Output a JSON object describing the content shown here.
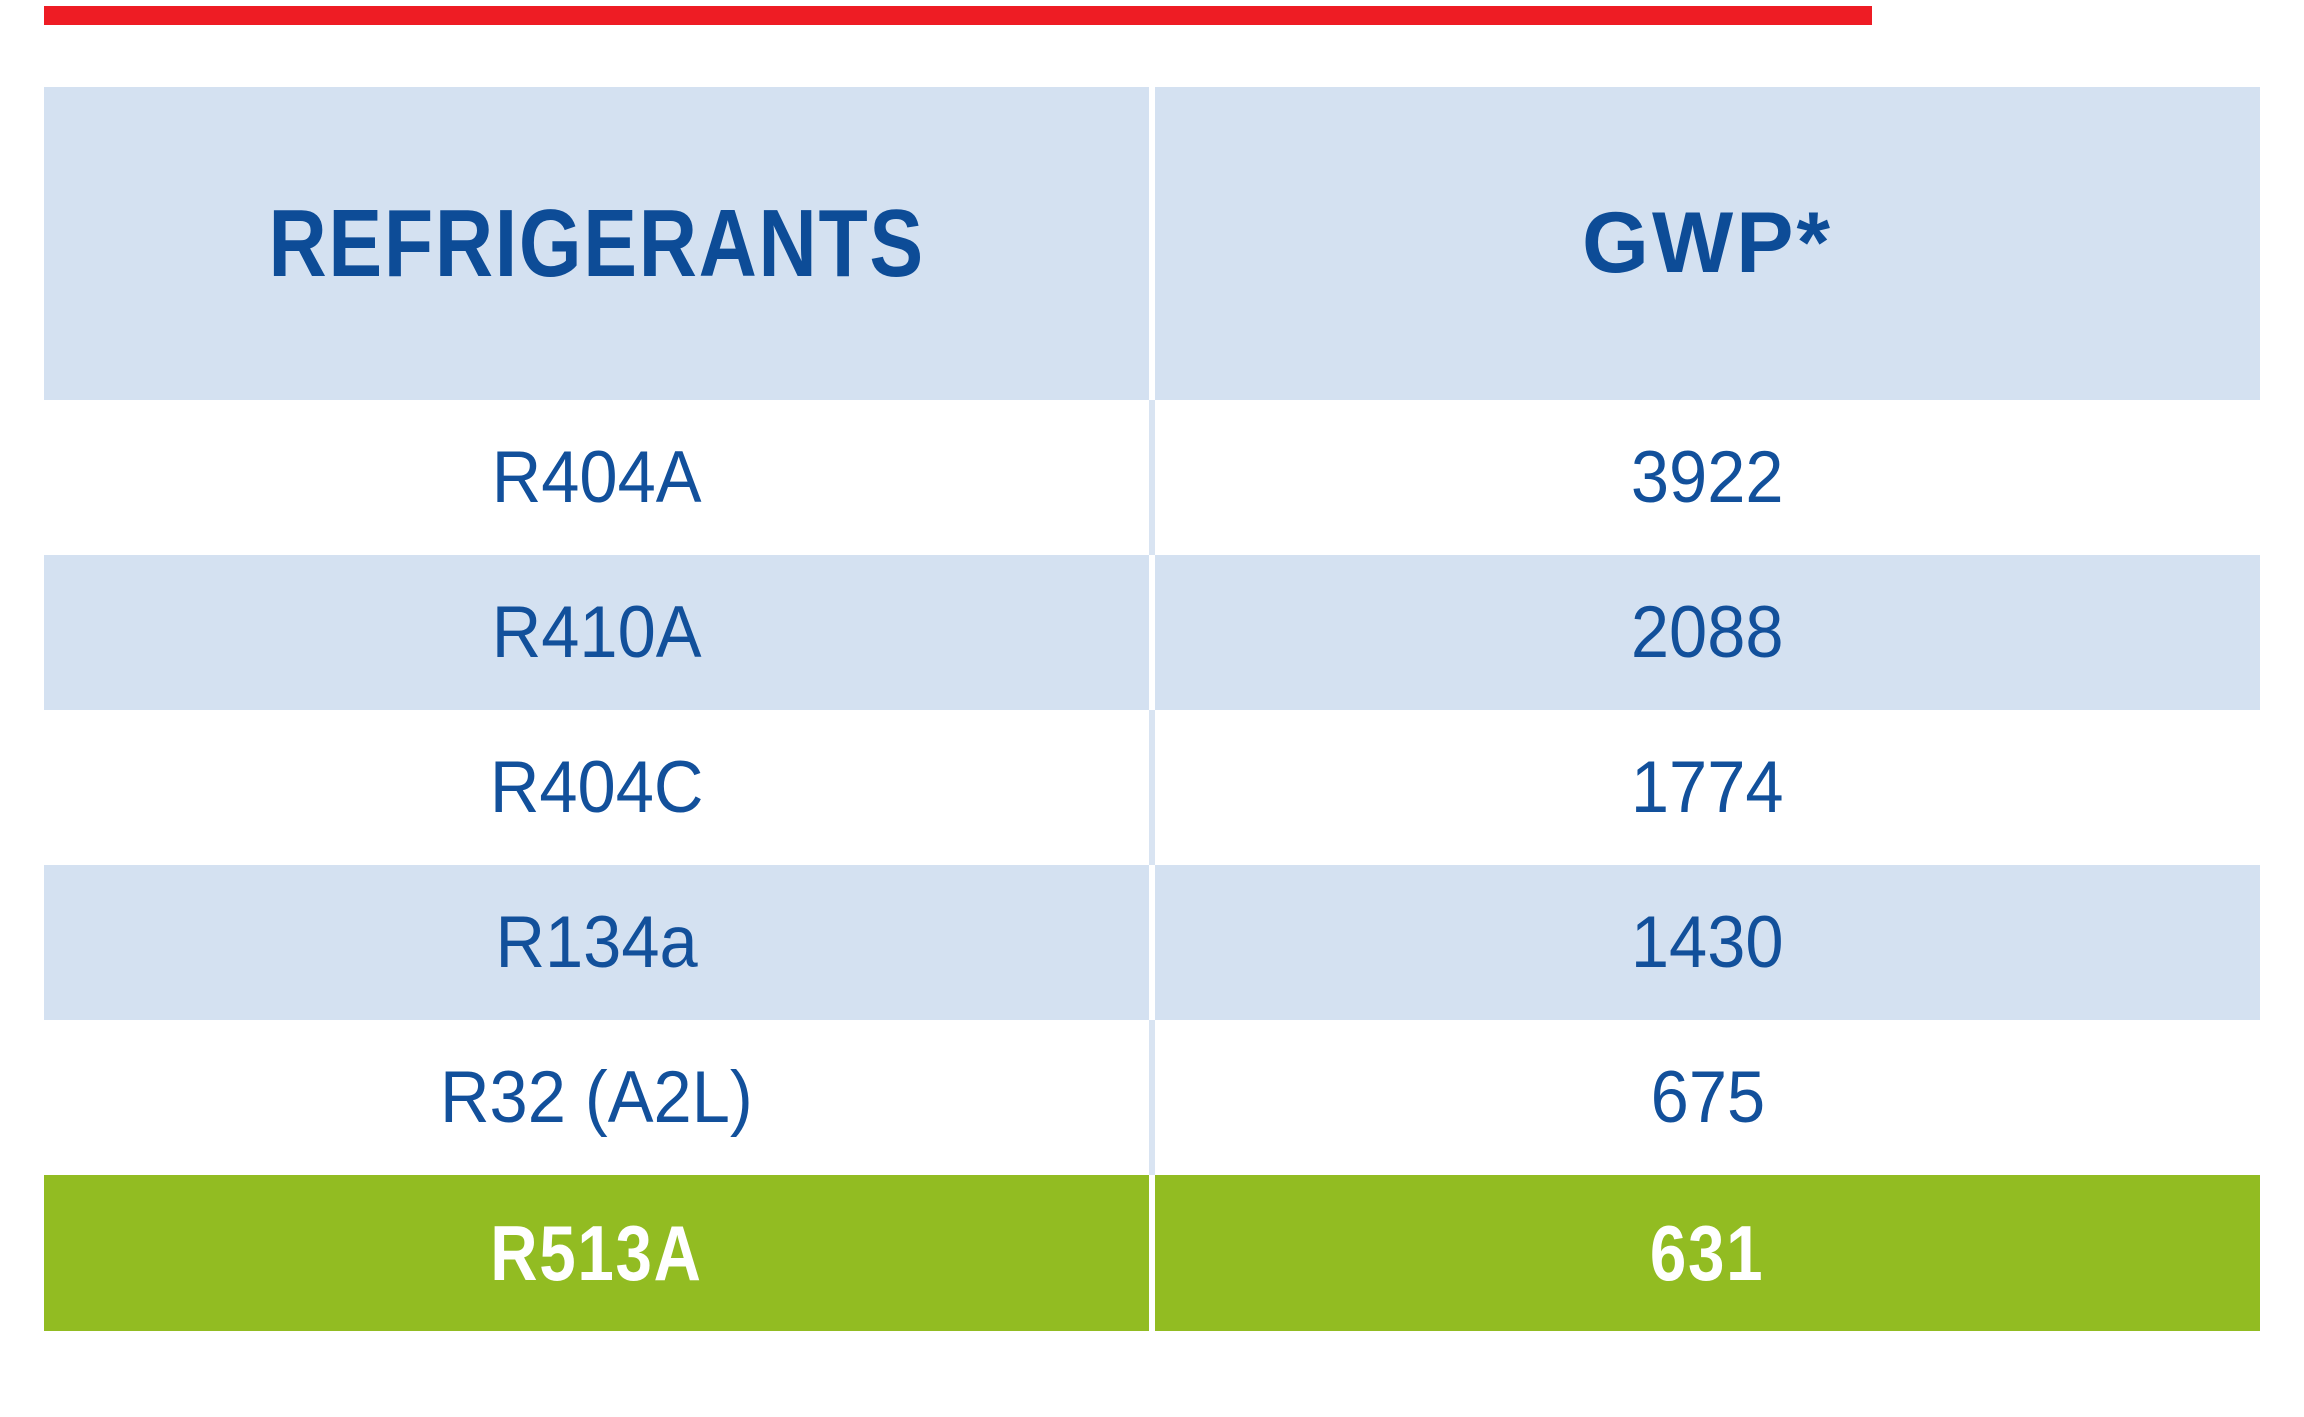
{
  "accent_bar": {
    "color": "#ee1c24"
  },
  "table": {
    "header": {
      "refrigerants": "REFRIGERANTS",
      "gwp": "GWP*"
    },
    "rows": [
      {
        "refrigerant": "R404A",
        "gwp": "3922"
      },
      {
        "refrigerant": "R410A",
        "gwp": "2088"
      },
      {
        "refrigerant": "R404C",
        "gwp": "1774"
      },
      {
        "refrigerant": "R134a",
        "gwp": "1430"
      },
      {
        "refrigerant": "R32 (A2L)",
        "gwp": "675"
      },
      {
        "refrigerant": "R513A",
        "gwp": "631"
      }
    ],
    "highlighted_refrigerant": "R513A"
  },
  "colors": {
    "accent-red": "#ee1c24",
    "table-blue": "#d4e1f1",
    "header-text-blue": "#0d4c97",
    "text-blue": "#12509b",
    "highlight-green": "#92bc22",
    "highlight-text": "#ffffff",
    "divider-on-white": "#d9e4f2"
  },
  "chart_data": {
    "type": "table",
    "columns": [
      "REFRIGERANTS",
      "GWP*"
    ],
    "rows": [
      [
        "R404A",
        3922
      ],
      [
        "R410A",
        2088
      ],
      [
        "R404C",
        1774
      ],
      [
        "R134a",
        1430
      ],
      [
        "R32 (A2L)",
        675
      ],
      [
        "R513A",
        631
      ]
    ],
    "highlighted_row": "R513A",
    "notes": "GWP values table; lowest-GWP refrigerant R513A highlighted in green; red accent bar top-left"
  }
}
